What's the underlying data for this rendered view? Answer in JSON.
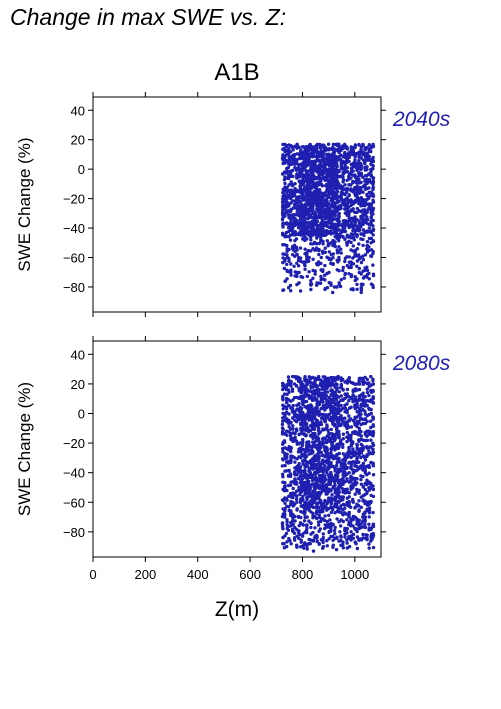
{
  "figure": {
    "title": "Change in max SWE vs. Z:",
    "scenario": "A1B",
    "xlabel": "Z(m)",
    "accent_color": "#1f1fb0"
  },
  "chart_data": [
    {
      "type": "scatter",
      "panel_label": "2040s",
      "xlabel": "",
      "ylabel": "SWE Change (%)",
      "xlim": [
        0,
        1100
      ],
      "ylim": [
        -97,
        49
      ],
      "xticks": [
        0,
        200,
        400,
        600,
        800,
        1000
      ],
      "yticks": [
        -80,
        -60,
        -40,
        -20,
        0,
        20,
        40
      ],
      "grid": false,
      "series": [
        {
          "color": "#1f1fb0",
          "x_range": [
            725,
            1070
          ],
          "dense_y_range": [
            -45,
            17
          ],
          "sparse_y_range": [
            -84,
            -45
          ],
          "x": [
            728,
            735,
            742,
            755,
            768,
            780,
            795,
            810,
            822,
            835,
            848,
            860,
            872,
            885,
            898,
            910,
            922,
            935,
            948,
            960,
            972,
            985,
            998,
            1010,
            1022,
            1035,
            1048,
            1062
          ],
          "y": [
            -82,
            -76,
            -60,
            -70,
            -66,
            -58,
            -73,
            -68,
            -62,
            -78,
            -55,
            -65,
            -60,
            -72,
            -52,
            -58,
            -80,
            -63,
            -57,
            -74,
            -50,
            -66,
            -48,
            -54,
            -60,
            -45,
            -52,
            -50
          ]
        }
      ]
    },
    {
      "type": "scatter",
      "panel_label": "2080s",
      "xlabel": "Z(m)",
      "ylabel": "SWE Change (%)",
      "xlim": [
        0,
        1100
      ],
      "ylim": [
        -97,
        49
      ],
      "xticks": [
        0,
        200,
        400,
        600,
        800,
        1000
      ],
      "yticks": [
        -80,
        -60,
        -40,
        -20,
        0,
        20,
        40
      ],
      "grid": false,
      "series": [
        {
          "color": "#1f1fb0",
          "x_range": [
            725,
            1070
          ],
          "dense_y_range": [
            -65,
            25
          ],
          "sparse_y_range": [
            -92,
            -65
          ],
          "x": [
            730,
            740,
            752,
            765,
            778,
            790,
            805,
            818,
            830,
            842,
            855,
            868,
            880,
            893,
            905,
            918,
            930,
            943,
            955,
            968,
            980,
            993,
            1005,
            1018,
            1030,
            1043,
            1055,
            1066
          ],
          "y": [
            -88,
            -90,
            -86,
            -75,
            -89,
            -82,
            -91,
            -70,
            -88,
            -93,
            -84,
            -78,
            -90,
            -86,
            -72,
            -89,
            -92,
            -80,
            -87,
            -68,
            -90,
            -76,
            -88,
            -85,
            -70,
            -82,
            -78,
            -85
          ]
        }
      ]
    }
  ]
}
